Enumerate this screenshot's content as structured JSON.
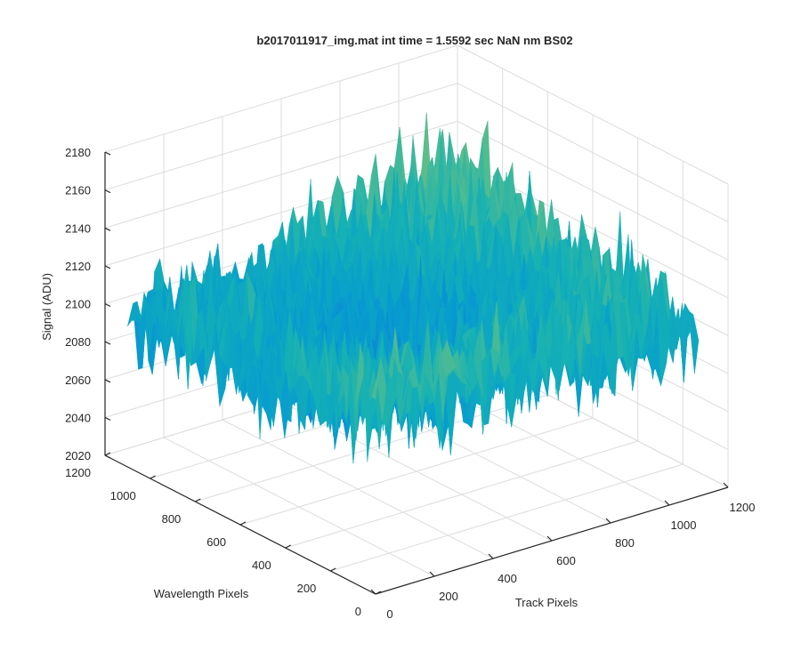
{
  "chart_data": {
    "type": "surface",
    "title": "b2017011917_img.mat int time = 1.5592 sec  NaN nm BS02",
    "xlabel": "Track Pixels",
    "ylabel": "Wavelength Pixels",
    "zlabel": "Signal (ADU)",
    "xlim": [
      0,
      1200
    ],
    "ylim": [
      0,
      1200
    ],
    "zlim": [
      2020,
      2180
    ],
    "x_ticks": [
      "0",
      "200",
      "400",
      "600",
      "800",
      "1000",
      "1200"
    ],
    "y_ticks": [
      "0",
      "200",
      "400",
      "600",
      "800",
      "1000",
      "1200"
    ],
    "z_ticks": [
      "2020",
      "2040",
      "2060",
      "2080",
      "2100",
      "2120",
      "2140",
      "2160",
      "2180"
    ],
    "x_tick_values": [
      0,
      200,
      400,
      600,
      800,
      1000,
      1200
    ],
    "y_tick_values": [
      0,
      200,
      400,
      600,
      800,
      1000,
      1200
    ],
    "z_tick_values": [
      2020,
      2040,
      2060,
      2080,
      2100,
      2120,
      2140,
      2160,
      2180
    ],
    "grid": true,
    "colormap": "parula",
    "surface_extent": {
      "x": [
        0,
        1100
      ],
      "y": [
        0,
        1100
      ]
    },
    "surface_profile": {
      "x": [
        0,
        275,
        550,
        825,
        1100
      ],
      "y": [
        0,
        275,
        550,
        825,
        1100
      ],
      "z": [
        [
          2120,
          2122,
          2112,
          2110,
          2108
        ],
        [
          2112,
          2095,
          2100,
          2108,
          2112
        ],
        [
          2105,
          2090,
          2082,
          2095,
          2118
        ],
        [
          2108,
          2096,
          2092,
          2110,
          2125
        ],
        [
          2095,
          2100,
          2110,
          2122,
          2130
        ]
      ]
    },
    "noise_amplitude": 14,
    "z_min_observed": 2032,
    "z_max_observed": 2168
  }
}
